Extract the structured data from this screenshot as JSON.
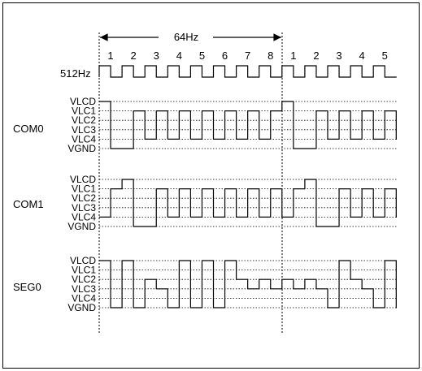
{
  "title": "64Hz",
  "clock_label": "512Hz",
  "top_numbers": [
    "1",
    "2",
    "3",
    "4",
    "5",
    "6",
    "7",
    "8",
    "1",
    "2",
    "3",
    "4",
    "5"
  ],
  "level_labels": [
    "VLCD",
    "VLC1",
    "VLC2",
    "VLC3",
    "VLC4",
    "VGND"
  ],
  "rows": [
    {
      "name": "COM0",
      "levels": [
        5,
        0,
        0,
        4,
        1,
        4,
        1,
        4,
        1,
        4,
        1,
        4,
        1,
        4,
        1,
        4,
        5,
        0,
        0,
        4,
        1,
        4,
        1,
        4,
        1,
        4,
        1
      ]
    },
    {
      "name": "COM1",
      "levels": [
        1,
        4,
        5,
        0,
        0,
        4,
        1,
        4,
        1,
        4,
        1,
        4,
        1,
        4,
        1,
        4,
        1,
        4,
        5,
        0,
        0,
        4,
        1,
        4,
        1,
        4,
        1
      ]
    },
    {
      "name": "SEG0",
      "levels": [
        5,
        0,
        5,
        0,
        3,
        2,
        0,
        5,
        0,
        5,
        0,
        5,
        3,
        2,
        3,
        2,
        3,
        2,
        3,
        2,
        0,
        5,
        3,
        2,
        0,
        5,
        0
      ]
    }
  ],
  "colors": {
    "line": "#000000",
    "grid": "#000000",
    "background": "#ffffff"
  }
}
